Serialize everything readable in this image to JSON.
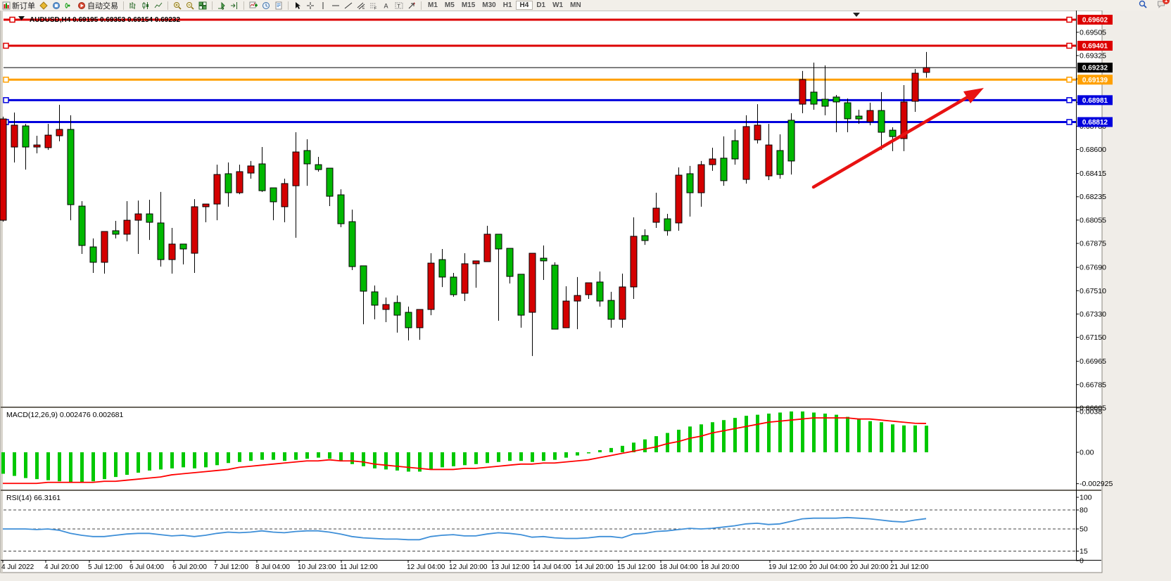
{
  "toolbar": {
    "new_order_label": "新订单",
    "auto_trading_label": "自动交易",
    "left_icon_names": [
      "market-watch-icon",
      "data-window-icon",
      "signals-icon"
    ],
    "chart_icon_names": [
      "bar-chart-icon",
      "candlestick-chart-icon",
      "line-chart-icon"
    ],
    "zoom_icon_names": [
      "zoom-in-icon",
      "zoom-out-icon",
      "tile-windows-icon"
    ],
    "scroll_icon_names": [
      "auto-scroll-icon",
      "chart-shift-icon"
    ],
    "insert_icon_names": [
      "indicators-icon",
      "periods-icon",
      "templates-icon"
    ],
    "draw_icon_names": [
      "cursor-icon",
      "crosshair-icon",
      "vertical-line-icon",
      "horizontal-line-icon",
      "trendline-icon",
      "equidistant-channel-icon",
      "fibonacci-icon",
      "text-icon",
      "text-label-icon",
      "arrows-icon"
    ],
    "timeframes": [
      "M1",
      "M5",
      "M15",
      "M30",
      "H1",
      "H4",
      "D1",
      "W1",
      "MN"
    ],
    "active_timeframe": "H4",
    "right_icon_names": [
      "search-icon",
      "chat-icon"
    ],
    "chat_badge": "1"
  },
  "chart": {
    "symbol_title": "AUDUSD,H4 0.69195 0.69353 0.69154 0.69232",
    "ohlc": {
      "open": "0.69195",
      "high": "0.69353",
      "low": "0.69154",
      "close": "0.69232"
    },
    "current_price": "0.69232",
    "current_price_value": 0.69232,
    "hlines": [
      {
        "price": 0.69602,
        "label": "0.69602",
        "color": "#dd0000"
      },
      {
        "price": 0.69401,
        "label": "0.69401",
        "color": "#dd0000"
      },
      {
        "price": 0.69139,
        "label": "0.69139",
        "color": "#ffa000"
      },
      {
        "price": 0.68981,
        "label": "0.68981",
        "color": "#0000dd"
      },
      {
        "price": 0.68812,
        "label": "0.68812",
        "color": "#0000dd"
      }
    ],
    "axis_ticks": [
      "0.69505",
      "0.69325",
      "0.69145",
      "0.68965",
      "0.68780",
      "0.68600",
      "0.68415",
      "0.68235",
      "0.68055",
      "0.67875",
      "0.67690",
      "0.67510",
      "0.67330",
      "0.67150",
      "0.66965",
      "0.66785",
      "0.66605"
    ],
    "time_labels": [
      "4 Jul 2022",
      "4 Jul 20:00",
      "5 Jul 12:00",
      "6 Jul 04:00",
      "6 Jul 20:00",
      "7 Jul 12:00",
      "8 Jul 04:00",
      "10 Jul 23:00",
      "11 Jul 12:00",
      "12 Jul 04:00",
      "12 Jul 20:00",
      "13 Jul 12:00",
      "14 Jul 04:00",
      "14 Jul 20:00",
      "15 Jul 12:00",
      "18 Jul 04:00",
      "18 Jul 20:00",
      "19 Jul 12:00",
      "20 Jul 04:00",
      "20 Jul 20:00",
      "21 Jul 12:00"
    ],
    "trend_arrow": {
      "from_bar": 72,
      "from_price": 0.6831,
      "to_bar": 87,
      "to_price": 0.6907,
      "color": "#e81212"
    },
    "candles": [
      [
        0.68836,
        0.68853,
        0.68043,
        0.68054,
        "r"
      ],
      [
        0.68788,
        0.68885,
        0.685,
        0.68619,
        "r"
      ],
      [
        0.68619,
        0.68798,
        0.68445,
        0.68782,
        "g"
      ],
      [
        0.68635,
        0.68706,
        0.6857,
        0.68619,
        "r"
      ],
      [
        0.68711,
        0.68798,
        0.68597,
        0.68614,
        "r"
      ],
      [
        0.68755,
        0.68945,
        0.68663,
        0.68706,
        "r"
      ],
      [
        0.68174,
        0.68864,
        0.68054,
        0.68755,
        "g"
      ],
      [
        0.67859,
        0.68201,
        0.67794,
        0.68163,
        "g"
      ],
      [
        0.67729,
        0.67913,
        0.67647,
        0.67848,
        "g"
      ],
      [
        0.67967,
        0.67967,
        0.67642,
        0.67729,
        "r"
      ],
      [
        0.67946,
        0.68049,
        0.67913,
        0.67973,
        "g"
      ],
      [
        0.68054,
        0.68201,
        0.67891,
        0.67946,
        "r"
      ],
      [
        0.68103,
        0.68206,
        0.67794,
        0.68054,
        "r"
      ],
      [
        0.68038,
        0.68212,
        0.67902,
        0.68103,
        "g"
      ],
      [
        0.6775,
        0.68272,
        0.67696,
        0.68033,
        "g"
      ],
      [
        0.6787,
        0.67995,
        0.67642,
        0.6775,
        "r"
      ],
      [
        0.67832,
        0.6787,
        0.67713,
        0.6787,
        "g"
      ],
      [
        0.68158,
        0.68217,
        0.67647,
        0.67799,
        "r"
      ],
      [
        0.68179,
        0.68179,
        0.68038,
        0.68158,
        "r"
      ],
      [
        0.68407,
        0.68483,
        0.68054,
        0.68179,
        "r"
      ],
      [
        0.68266,
        0.685,
        0.68158,
        0.68413,
        "g"
      ],
      [
        0.68429,
        0.68483,
        0.68255,
        0.68266,
        "r"
      ],
      [
        0.68473,
        0.68511,
        0.68375,
        0.68418,
        "r"
      ],
      [
        0.68282,
        0.68619,
        0.68272,
        0.68489,
        "g"
      ],
      [
        0.68196,
        0.68304,
        0.68054,
        0.68304,
        "g"
      ],
      [
        0.68337,
        0.68375,
        0.68038,
        0.68158,
        "r"
      ],
      [
        0.68581,
        0.68733,
        0.67919,
        0.6832,
        "r"
      ],
      [
        0.68489,
        0.68679,
        0.6832,
        0.68592,
        "g"
      ],
      [
        0.68445,
        0.68543,
        0.68429,
        0.68483,
        "g"
      ],
      [
        0.68239,
        0.68456,
        0.68163,
        0.68456,
        "g"
      ],
      [
        0.68027,
        0.68293,
        0.68,
        0.6825,
        "g"
      ],
      [
        0.67696,
        0.68136,
        0.67669,
        0.68043,
        "g"
      ],
      [
        0.67506,
        0.67702,
        0.67251,
        0.67702,
        "g"
      ],
      [
        0.67398,
        0.6755,
        0.67289,
        0.67501,
        "g"
      ],
      [
        0.67403,
        0.67457,
        0.67267,
        0.67365,
        "r"
      ],
      [
        0.67321,
        0.67473,
        0.67186,
        0.67419,
        "g"
      ],
      [
        0.67224,
        0.67387,
        0.67126,
        0.67343,
        "g"
      ],
      [
        0.67365,
        0.67365,
        0.67131,
        0.67224,
        "r"
      ],
      [
        0.67723,
        0.67799,
        0.67321,
        0.67365,
        "r"
      ],
      [
        0.67615,
        0.67832,
        0.67538,
        0.6775,
        "g"
      ],
      [
        0.67479,
        0.67647,
        0.67463,
        0.67615,
        "g"
      ],
      [
        0.67718,
        0.67799,
        0.6743,
        0.6749,
        "r"
      ],
      [
        0.6774,
        0.6774,
        0.67533,
        0.67718,
        "r"
      ],
      [
        0.67946,
        0.68011,
        0.67734,
        0.67734,
        "r"
      ],
      [
        0.67832,
        0.67946,
        0.67278,
        0.67946,
        "g"
      ],
      [
        0.6762,
        0.67837,
        0.67566,
        0.67837,
        "g"
      ],
      [
        0.67321,
        0.67637,
        0.67224,
        0.67637,
        "g"
      ],
      [
        0.67799,
        0.67799,
        0.67006,
        0.67343,
        "r"
      ],
      [
        0.6774,
        0.67859,
        0.67593,
        0.67761,
        "g"
      ],
      [
        0.67213,
        0.67729,
        0.67213,
        0.67707,
        "g"
      ],
      [
        0.6743,
        0.67544,
        0.67224,
        0.67224,
        "r"
      ],
      [
        0.67473,
        0.67615,
        0.67213,
        0.6743,
        "r"
      ],
      [
        0.67571,
        0.67571,
        0.67446,
        0.67479,
        "r"
      ],
      [
        0.6743,
        0.67658,
        0.67387,
        0.67577,
        "g"
      ],
      [
        0.67289,
        0.67501,
        0.67224,
        0.67435,
        "g"
      ],
      [
        0.67539,
        0.67642,
        0.67224,
        0.67289,
        "r"
      ],
      [
        0.6793,
        0.68076,
        0.67446,
        0.67539,
        "r"
      ],
      [
        0.67897,
        0.67984,
        0.67864,
        0.67935,
        "g"
      ],
      [
        0.68147,
        0.68266,
        0.67995,
        0.68038,
        "r"
      ],
      [
        0.67973,
        0.68103,
        0.67935,
        0.68065,
        "g"
      ],
      [
        0.68402,
        0.68462,
        0.67973,
        0.68033,
        "r"
      ],
      [
        0.68266,
        0.68473,
        0.68082,
        0.68413,
        "g"
      ],
      [
        0.68483,
        0.68511,
        0.68158,
        0.68266,
        "r"
      ],
      [
        0.68527,
        0.68614,
        0.68435,
        0.68483,
        "r"
      ],
      [
        0.68359,
        0.68701,
        0.6832,
        0.68533,
        "g"
      ],
      [
        0.68527,
        0.68755,
        0.68483,
        0.68668,
        "g"
      ],
      [
        0.68777,
        0.68864,
        0.68337,
        0.68369,
        "r"
      ],
      [
        0.68788,
        0.6895,
        0.68646,
        0.68674,
        "r"
      ],
      [
        0.68635,
        0.68798,
        0.68364,
        0.68396,
        "r"
      ],
      [
        0.68407,
        0.68717,
        0.68375,
        0.68592,
        "g"
      ],
      [
        0.68511,
        0.6888,
        0.68407,
        0.68826,
        "g"
      ],
      [
        0.6914,
        0.69206,
        0.6888,
        0.6895,
        "r"
      ],
      [
        0.6895,
        0.69271,
        0.68907,
        0.69043,
        "g"
      ],
      [
        0.68934,
        0.69249,
        0.68864,
        0.68988,
        "g"
      ],
      [
        0.68967,
        0.69021,
        0.68733,
        0.69005,
        "g"
      ],
      [
        0.68837,
        0.68994,
        0.68733,
        0.68961,
        "g"
      ],
      [
        0.68836,
        0.68907,
        0.68798,
        0.68858,
        "g"
      ],
      [
        0.68901,
        0.68961,
        0.68787,
        0.68815,
        "r"
      ],
      [
        0.68733,
        0.69043,
        0.68597,
        0.68901,
        "g"
      ],
      [
        0.687,
        0.68771,
        0.68587,
        0.68749,
        "g"
      ],
      [
        0.68967,
        0.69097,
        0.68587,
        0.68684,
        "r"
      ],
      [
        0.69189,
        0.69222,
        0.68891,
        0.68972,
        "r"
      ],
      [
        0.69195,
        0.69353,
        0.69154,
        0.69232,
        "r"
      ]
    ]
  },
  "macd": {
    "label": "MACD(12,26,9) 0.002476 0.002681",
    "axis_ticks": [
      "0.0038",
      "0.00",
      "-0.002925"
    ],
    "axis_values": [
      0.0038,
      0.0,
      -0.002925
    ],
    "values": [
      -0.002,
      -0.0022,
      -0.0024,
      -0.0025,
      -0.0026,
      -0.0027,
      -0.0028,
      -0.0028,
      -0.0027,
      -0.0025,
      -0.0023,
      -0.0021,
      -0.0019,
      -0.0017,
      -0.0016,
      -0.0015,
      -0.0014,
      -0.0015,
      -0.0014,
      -0.0012,
      -0.001,
      -0.0009,
      -0.0008,
      -0.0007,
      -0.0007,
      -0.0008,
      -0.0007,
      -0.0006,
      -0.0005,
      -0.0006,
      -0.0008,
      -0.0011,
      -0.0013,
      -0.0015,
      -0.0016,
      -0.0017,
      -0.0018,
      -0.0018,
      -0.0016,
      -0.0014,
      -0.0013,
      -0.0012,
      -0.0011,
      -0.001,
      -0.0009,
      -0.0008,
      -0.0008,
      -0.0009,
      -0.0008,
      -0.0007,
      -0.0005,
      -0.0003,
      -0.0001,
      0.0002,
      0.0004,
      0.0006,
      0.0009,
      0.0012,
      0.0015,
      0.0018,
      0.0021,
      0.0024,
      0.0026,
      0.0028,
      0.003,
      0.0032,
      0.0034,
      0.0035,
      0.0036,
      0.0037,
      0.0038,
      0.0038,
      0.0037,
      0.0036,
      0.0035,
      0.0033,
      0.0031,
      0.0029,
      0.0028,
      0.0026,
      0.0025,
      0.0025,
      0.002476
    ],
    "signal": [
      -0.0029,
      -0.0029,
      -0.0029,
      -0.0029,
      -0.0028,
      -0.0028,
      -0.0028,
      -0.0028,
      -0.0028,
      -0.0027,
      -0.0027,
      -0.0026,
      -0.0025,
      -0.0024,
      -0.0023,
      -0.0021,
      -0.002,
      -0.0019,
      -0.0018,
      -0.0017,
      -0.0016,
      -0.0014,
      -0.0013,
      -0.0012,
      -0.0011,
      -0.001,
      -0.0009,
      -0.0008,
      -0.0008,
      -0.0007,
      -0.0008,
      -0.0008,
      -0.0009,
      -0.0011,
      -0.0012,
      -0.0013,
      -0.0014,
      -0.0015,
      -0.0016,
      -0.0016,
      -0.0016,
      -0.0015,
      -0.0015,
      -0.0014,
      -0.0013,
      -0.0012,
      -0.0011,
      -0.0011,
      -0.001,
      -0.001,
      -0.0009,
      -0.0008,
      -0.0007,
      -0.0005,
      -0.0003,
      -0.0001,
      0.0001,
      0.0003,
      0.0005,
      0.0008,
      0.001,
      0.0013,
      0.0015,
      0.0018,
      0.002,
      0.0022,
      0.0024,
      0.0026,
      0.0028,
      0.0029,
      0.003,
      0.0031,
      0.0032,
      0.0032,
      0.0032,
      0.0032,
      0.0031,
      0.0031,
      0.003,
      0.0029,
      0.0028,
      0.0027,
      0.002681
    ]
  },
  "rsi": {
    "label": "RSI(14) 66.3161",
    "axis_ticks": [
      "100",
      "80",
      "50",
      "15",
      "0"
    ],
    "axis_values": [
      100,
      80,
      50,
      15,
      0
    ],
    "level_lines": [
      80,
      50,
      15
    ],
    "values": [
      50,
      50,
      50,
      49,
      50,
      48,
      43,
      40,
      38,
      38,
      40,
      42,
      43,
      43,
      41,
      39,
      40,
      38,
      40,
      43,
      45,
      44,
      45,
      47,
      45,
      44,
      46,
      47,
      47,
      45,
      42,
      38,
      36,
      35,
      34,
      34,
      33,
      33,
      38,
      40,
      41,
      39,
      39,
      42,
      44,
      43,
      41,
      37,
      38,
      36,
      35,
      35,
      36,
      38,
      38,
      36,
      42,
      43,
      46,
      47,
      49,
      51,
      50,
      51,
      53,
      55,
      58,
      59,
      57,
      58,
      62,
      66,
      67,
      67,
      67,
      68,
      67,
      66,
      64,
      62,
      61,
      64,
      66.3
    ]
  },
  "colors": {
    "bull": "#00b800",
    "bear": "#d40000",
    "macd_hist": "#00c800",
    "macd_signal": "#ff0000",
    "rsi_line": "#3e8fd8",
    "price_line": "#000000",
    "tag_text": "#ffffff",
    "chart_bg": "#ffffff"
  }
}
